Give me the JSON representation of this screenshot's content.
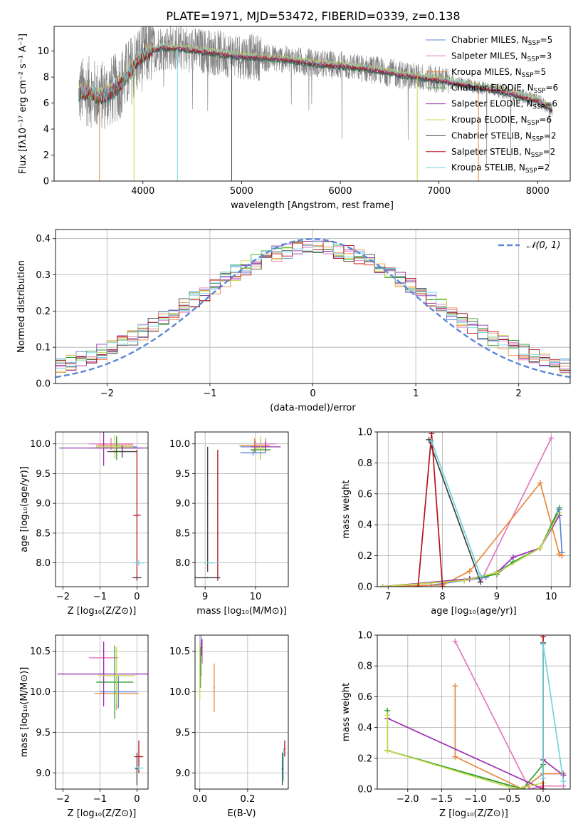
{
  "figure": {
    "title": "PLATE=1971, MJD=53472, FIBERID=0339, z=0.138"
  },
  "colors": {
    "grid": "#b0b0b0",
    "normal_curve": "#5b87d8",
    "data_spectrum": "#7f7f7f"
  },
  "models": [
    {
      "name": "Chabrier MILES",
      "nssp": "5",
      "color": "#5b87d8"
    },
    {
      "name": "Salpeter MILES",
      "nssp": "3",
      "color": "#e377c2"
    },
    {
      "name": "Kroupa MILES",
      "nssp": "5",
      "color": "#e8893b"
    },
    {
      "name": "Chabrier ELODIE",
      "nssp": "6",
      "color": "#2ca02c"
    },
    {
      "name": "Salpeter ELODIE",
      "nssp": "6",
      "color": "#9b30b0"
    },
    {
      "name": "Kroupa ELODIE",
      "nssp": "6",
      "color": "#c7d94a"
    },
    {
      "name": "Chabrier STELIB",
      "nssp": "2",
      "color": "#404040"
    },
    {
      "name": "Salpeter STELIB",
      "nssp": "2",
      "color": "#b5121b"
    },
    {
      "name": "Kroupa STELIB",
      "nssp": "2",
      "color": "#6fd6e0"
    }
  ],
  "chart_data": [
    {
      "id": "spectrum",
      "type": "line",
      "xlabel": "wavelength [Angstrom, rest frame]",
      "ylabel": "Flux [fλ10⁻¹⁷ erg cm⁻² s⁻¹ A⁻¹]",
      "xlim": [
        3100,
        8330
      ],
      "ylim": [
        0,
        11.9
      ],
      "xticks": [
        4000,
        5000,
        6000,
        7000,
        8000
      ],
      "yticks": [
        0,
        2,
        4,
        6,
        8,
        10
      ],
      "legend": "right",
      "legend_sub": "SSP",
      "continuum_x": [
        3350,
        3450,
        3550,
        3650,
        3750,
        3850,
        3950,
        4050,
        4200,
        4400,
        4600,
        4800,
        5000,
        5200,
        5400,
        5600,
        5800,
        6000,
        6200,
        6400,
        6600,
        6800,
        7000,
        7200,
        7400,
        7600,
        7800,
        8000,
        8150
      ],
      "continuum_y": [
        6.8,
        6.9,
        6.5,
        6.7,
        7.3,
        8.2,
        9.3,
        10.0,
        10.3,
        10.2,
        10.0,
        9.8,
        9.6,
        9.5,
        9.4,
        9.2,
        9.0,
        8.9,
        8.7,
        8.5,
        8.2,
        8.0,
        7.8,
        7.5,
        7.2,
        7.0,
        6.6,
        6.2,
        5.5
      ],
      "spikes": [
        {
          "x": 3560,
          "y0": 0,
          "color": "#e8893b"
        },
        {
          "x": 3910,
          "y0": 0,
          "color": "#c7d94a"
        },
        {
          "x": 4350,
          "y0": 0,
          "color": "#6fd6e0"
        },
        {
          "x": 4900,
          "y0": 0,
          "color": "#404040"
        },
        {
          "x": 6780,
          "y0": 0,
          "color": "#c7d94a"
        },
        {
          "x": 7400,
          "y0": 0,
          "color": "#e8893b"
        }
      ]
    },
    {
      "id": "residuals",
      "type": "histogram",
      "xlabel": "(data-model)/error",
      "ylabel": "Normed distribution",
      "xlim": [
        -2.5,
        2.5
      ],
      "ylim": [
        0,
        0.425
      ],
      "xticks": [
        -2,
        -1,
        0,
        1,
        2
      ],
      "yticks": [
        0.0,
        0.1,
        0.2,
        0.3,
        0.4
      ],
      "legend": "top-right",
      "normal_label": "𝒩(0, 1)",
      "bins": 50
    },
    {
      "id": "age-vs-Z",
      "type": "scatter",
      "xlabel": "Z [log₁₀(Z/Z⊙)]",
      "ylabel": "age  [log₁₀(age/yr)]",
      "xlim": [
        -2.2,
        0.3
      ],
      "ylim": [
        7.6,
        10.2
      ],
      "xticks": [
        -2,
        -1,
        0
      ],
      "yticks": [
        8.0,
        8.5,
        9.0,
        9.5,
        10.0
      ],
      "points": [
        {
          "m": 0,
          "x": -0.55,
          "y": 9.95,
          "ex": 0.55,
          "ey": 0.15
        },
        {
          "m": 1,
          "x": -0.7,
          "y": 10.0,
          "ex": 0.6,
          "ey": 0.1
        },
        {
          "m": 2,
          "x": -0.6,
          "y": 9.98,
          "ex": 0.5,
          "ey": 0.1
        },
        {
          "m": 3,
          "x": -0.55,
          "y": 9.93,
          "ex": 0.7,
          "ey": 0.2
        },
        {
          "m": 4,
          "x": -0.9,
          "y": 9.93,
          "ex": 1.2,
          "ey": 0.3
        },
        {
          "m": 5,
          "x": -0.6,
          "y": 9.95,
          "ex": 0.5,
          "ey": 0.2
        },
        {
          "m": 6,
          "x": -0.4,
          "y": 9.87,
          "ex": 0.4,
          "ey": 0.1
        },
        {
          "m": 7,
          "x": 0.0,
          "y": 8.8,
          "ex": 0.1,
          "ey": 1.1
        },
        {
          "m": 8,
          "x": 0.05,
          "y": 8.0,
          "ex": 0.15,
          "ey": 0.05
        },
        {
          "m": 6,
          "x": 0.0,
          "y": 7.75,
          "ex": 0.12,
          "ey": 0.01
        }
      ]
    },
    {
      "id": "age-vs-mass",
      "type": "scatter",
      "xlabel": "mass [log₁₀(M/M⊙)]",
      "ylabel": "",
      "xlim": [
        8.8,
        10.65
      ],
      "ylim": [
        7.6,
        10.2
      ],
      "xticks": [
        9,
        10
      ],
      "yticks": [
        8.0,
        8.5,
        9.0,
        9.5,
        10.0
      ],
      "points": [
        {
          "m": 0,
          "x": 10.0,
          "y": 9.95,
          "ex": 0.3,
          "ey": 0.1
        },
        {
          "m": 1,
          "x": 10.2,
          "y": 10.0,
          "ex": 0.2,
          "ey": 0.1
        },
        {
          "m": 2,
          "x": 9.98,
          "y": 9.97,
          "ex": 0.3,
          "ey": 0.12
        },
        {
          "m": 3,
          "x": 10.1,
          "y": 9.9,
          "ex": 0.2,
          "ey": 0.15
        },
        {
          "m": 4,
          "x": 10.2,
          "y": 9.95,
          "ex": 0.3,
          "ey": 0.1
        },
        {
          "m": 5,
          "x": 10.1,
          "y": 9.93,
          "ex": 0.1,
          "ey": 0.2
        },
        {
          "m": 6,
          "x": 9.05,
          "y": 8.9,
          "ex": 0.01,
          "ey": 1.05
        },
        {
          "m": 7,
          "x": 9.25,
          "y": 8.8,
          "ex": 0.01,
          "ey": 1.1
        },
        {
          "m": 8,
          "x": 9.12,
          "y": 8.0,
          "ex": 0.15,
          "ey": 0.01
        },
        {
          "m": 6,
          "x": 9.05,
          "y": 7.75,
          "ex": 0.25,
          "ey": 0.01
        },
        {
          "m": 0,
          "x": 9.95,
          "y": 9.85,
          "ex": 0.25,
          "ey": 0.05
        }
      ]
    },
    {
      "id": "weight-vs-age",
      "type": "line",
      "xlabel": "age  [log₁₀(age/yr)]",
      "ylabel": "mass weight",
      "xlim": [
        6.8,
        10.35
      ],
      "ylim": [
        0,
        1.0
      ],
      "xticks": [
        7,
        8,
        9,
        10
      ],
      "yticks": [
        0.0,
        0.2,
        0.4,
        0.6,
        0.8,
        1.0
      ],
      "series": [
        {
          "m": 0,
          "x": [
            6.9,
            7.8,
            8.4,
            8.8,
            9.8,
            10.15
          ],
          "y": [
            0.0,
            0.01,
            0.04,
            0.06,
            0.25,
            0.5
          ]
        },
        {
          "m": 1,
          "x": [
            8.7,
            10.0
          ],
          "y": [
            0.03,
            0.96
          ]
        },
        {
          "m": 2,
          "x": [
            6.9,
            8.0,
            8.5,
            9.8,
            10.15
          ],
          "y": [
            0.0,
            0.01,
            0.1,
            0.67,
            0.21
          ]
        },
        {
          "m": 3,
          "x": [
            6.9,
            8.5,
            9.0,
            9.3,
            9.8,
            10.15
          ],
          "y": [
            0.0,
            0.05,
            0.08,
            0.16,
            0.25,
            0.51
          ]
        },
        {
          "m": 4,
          "x": [
            6.9,
            8.5,
            9.0,
            9.3,
            9.8,
            10.15
          ],
          "y": [
            0.0,
            0.05,
            0.09,
            0.19,
            0.25,
            0.46
          ]
        },
        {
          "m": 5,
          "x": [
            6.9,
            8.4,
            9.0,
            9.8,
            10.15
          ],
          "y": [
            0.0,
            0.04,
            0.09,
            0.25,
            0.48
          ]
        },
        {
          "m": 6,
          "x": [
            7.75,
            8.7
          ],
          "y": [
            0.95,
            0.03
          ]
        },
        {
          "m": 7,
          "x": [
            7.55,
            7.8,
            8.0
          ],
          "y": [
            0.0,
            0.99,
            0.0
          ]
        },
        {
          "m": 8,
          "x": [
            7.8,
            8.7
          ],
          "y": [
            0.94,
            0.07
          ]
        },
        {
          "m": 0,
          "x": [
            10.15,
            10.2
          ],
          "y": [
            0.5,
            0.22
          ]
        },
        {
          "m": 2,
          "x": [
            10.15,
            10.2
          ],
          "y": [
            0.21,
            0.2
          ]
        }
      ]
    },
    {
      "id": "mass-vs-Z",
      "type": "scatter",
      "xlabel": "Z [log₁₀(Z/Z⊙)]",
      "ylabel": "mass [log₁₀(M/M⊙)]",
      "xlim": [
        -2.2,
        0.3
      ],
      "ylim": [
        8.8,
        10.7
      ],
      "xticks": [
        -2,
        -1,
        0
      ],
      "yticks": [
        9.0,
        9.5,
        10.0,
        10.5
      ],
      "points": [
        {
          "m": 0,
          "x": -0.5,
          "y": 10.0,
          "ex": 0.5,
          "ey": 0.2
        },
        {
          "m": 1,
          "x": -0.9,
          "y": 10.42,
          "ex": 0.4,
          "ey": 0.2
        },
        {
          "m": 2,
          "x": -0.55,
          "y": 9.98,
          "ex": 0.6,
          "ey": 0.2
        },
        {
          "m": 3,
          "x": -0.6,
          "y": 10.12,
          "ex": 0.5,
          "ey": 0.45
        },
        {
          "m": 4,
          "x": -0.9,
          "y": 10.22,
          "ex": 1.25,
          "ey": 0.4
        },
        {
          "m": 5,
          "x": -0.55,
          "y": 10.2,
          "ex": 0.5,
          "ey": 0.35
        },
        {
          "m": 6,
          "x": 0.0,
          "y": 9.05,
          "ex": 0.05,
          "ey": 0.2
        },
        {
          "m": 7,
          "x": 0.05,
          "y": 9.2,
          "ex": 0.12,
          "ey": 0.2
        },
        {
          "m": 8,
          "x": 0.05,
          "y": 9.06,
          "ex": 0.12,
          "ey": 0.02
        }
      ]
    },
    {
      "id": "mass-vs-EBV",
      "type": "scatter",
      "xlabel": "E(B-V)",
      "ylabel": "",
      "xlim": [
        -0.02,
        0.37
      ],
      "ylim": [
        8.8,
        10.7
      ],
      "xticks": [
        0.0,
        0.2
      ],
      "yticks": [
        9.0,
        9.5,
        10.0,
        10.5
      ],
      "points": [
        {
          "m": 0,
          "x": 0.005,
          "y": 10.45,
          "ex": 0.003,
          "ey": 0.25
        },
        {
          "m": 1,
          "x": 0.01,
          "y": 10.5,
          "ex": 0.003,
          "ey": 0.15
        },
        {
          "m": 2,
          "x": 0.06,
          "y": 10.05,
          "ex": 0.003,
          "ey": 0.3
        },
        {
          "m": 3,
          "x": 0.003,
          "y": 10.3,
          "ex": 0.003,
          "ey": 0.25
        },
        {
          "m": 4,
          "x": 0.008,
          "y": 10.55,
          "ex": 0.003,
          "ey": 0.1
        },
        {
          "m": 5,
          "x": 0.0,
          "y": 10.25,
          "ex": 0.003,
          "ey": 0.35
        },
        {
          "m": 6,
          "x": 0.345,
          "y": 9.05,
          "ex": 0.003,
          "ey": 0.2
        },
        {
          "m": 7,
          "x": 0.355,
          "y": 9.3,
          "ex": 0.003,
          "ey": 0.1
        },
        {
          "m": 8,
          "x": 0.35,
          "y": 9.1,
          "ex": 0.003,
          "ey": 0.2
        }
      ]
    },
    {
      "id": "weight-vs-Z",
      "type": "line",
      "xlabel": "Z [log₁₀(Z/Z⊙)]",
      "ylabel": "mass weight",
      "xlim": [
        -2.45,
        0.4
      ],
      "ylim": [
        0,
        1.0
      ],
      "xticks": [
        -2.0,
        -1.5,
        -1.0,
        -0.5,
        0.0
      ],
      "yticks": [
        0.0,
        0.2,
        0.4,
        0.6,
        0.8,
        1.0
      ],
      "series": [
        {
          "m": 0,
          "x": [
            -2.3,
            -0.3,
            0.0,
            0.3
          ],
          "y": [
            0.25,
            0.0,
            0.1,
            0.1
          ]
        },
        {
          "m": 1,
          "x": [
            -1.3,
            -0.2,
            0.0,
            0.3
          ],
          "y": [
            0.96,
            0.0,
            0.02,
            0.02
          ]
        },
        {
          "m": 2,
          "x": [
            -1.3,
            -1.3,
            -0.3,
            0.0,
            0.3
          ],
          "y": [
            0.67,
            0.21,
            0.0,
            0.1,
            0.1
          ]
        },
        {
          "m": 3,
          "x": [
            -2.3,
            -2.3,
            -0.3,
            0.0
          ],
          "y": [
            0.51,
            0.25,
            0.0,
            0.16
          ]
        },
        {
          "m": 4,
          "x": [
            -2.3,
            0.0,
            0.0,
            0.3
          ],
          "y": [
            0.46,
            0.0,
            0.19,
            0.09
          ]
        },
        {
          "m": 5,
          "x": [
            -2.3,
            -2.3,
            -0.4,
            0.0
          ],
          "y": [
            0.48,
            0.25,
            0.0,
            0.04
          ]
        },
        {
          "m": 6,
          "x": [
            0.0,
            0.0
          ],
          "y": [
            0.0,
            0.95
          ]
        },
        {
          "m": 7,
          "x": [
            0.0,
            0.0
          ],
          "y": [
            0.0,
            0.99
          ]
        },
        {
          "m": 8,
          "x": [
            0.0,
            0.0,
            0.3
          ],
          "y": [
            0.07,
            0.94,
            0.05
          ]
        }
      ]
    }
  ]
}
